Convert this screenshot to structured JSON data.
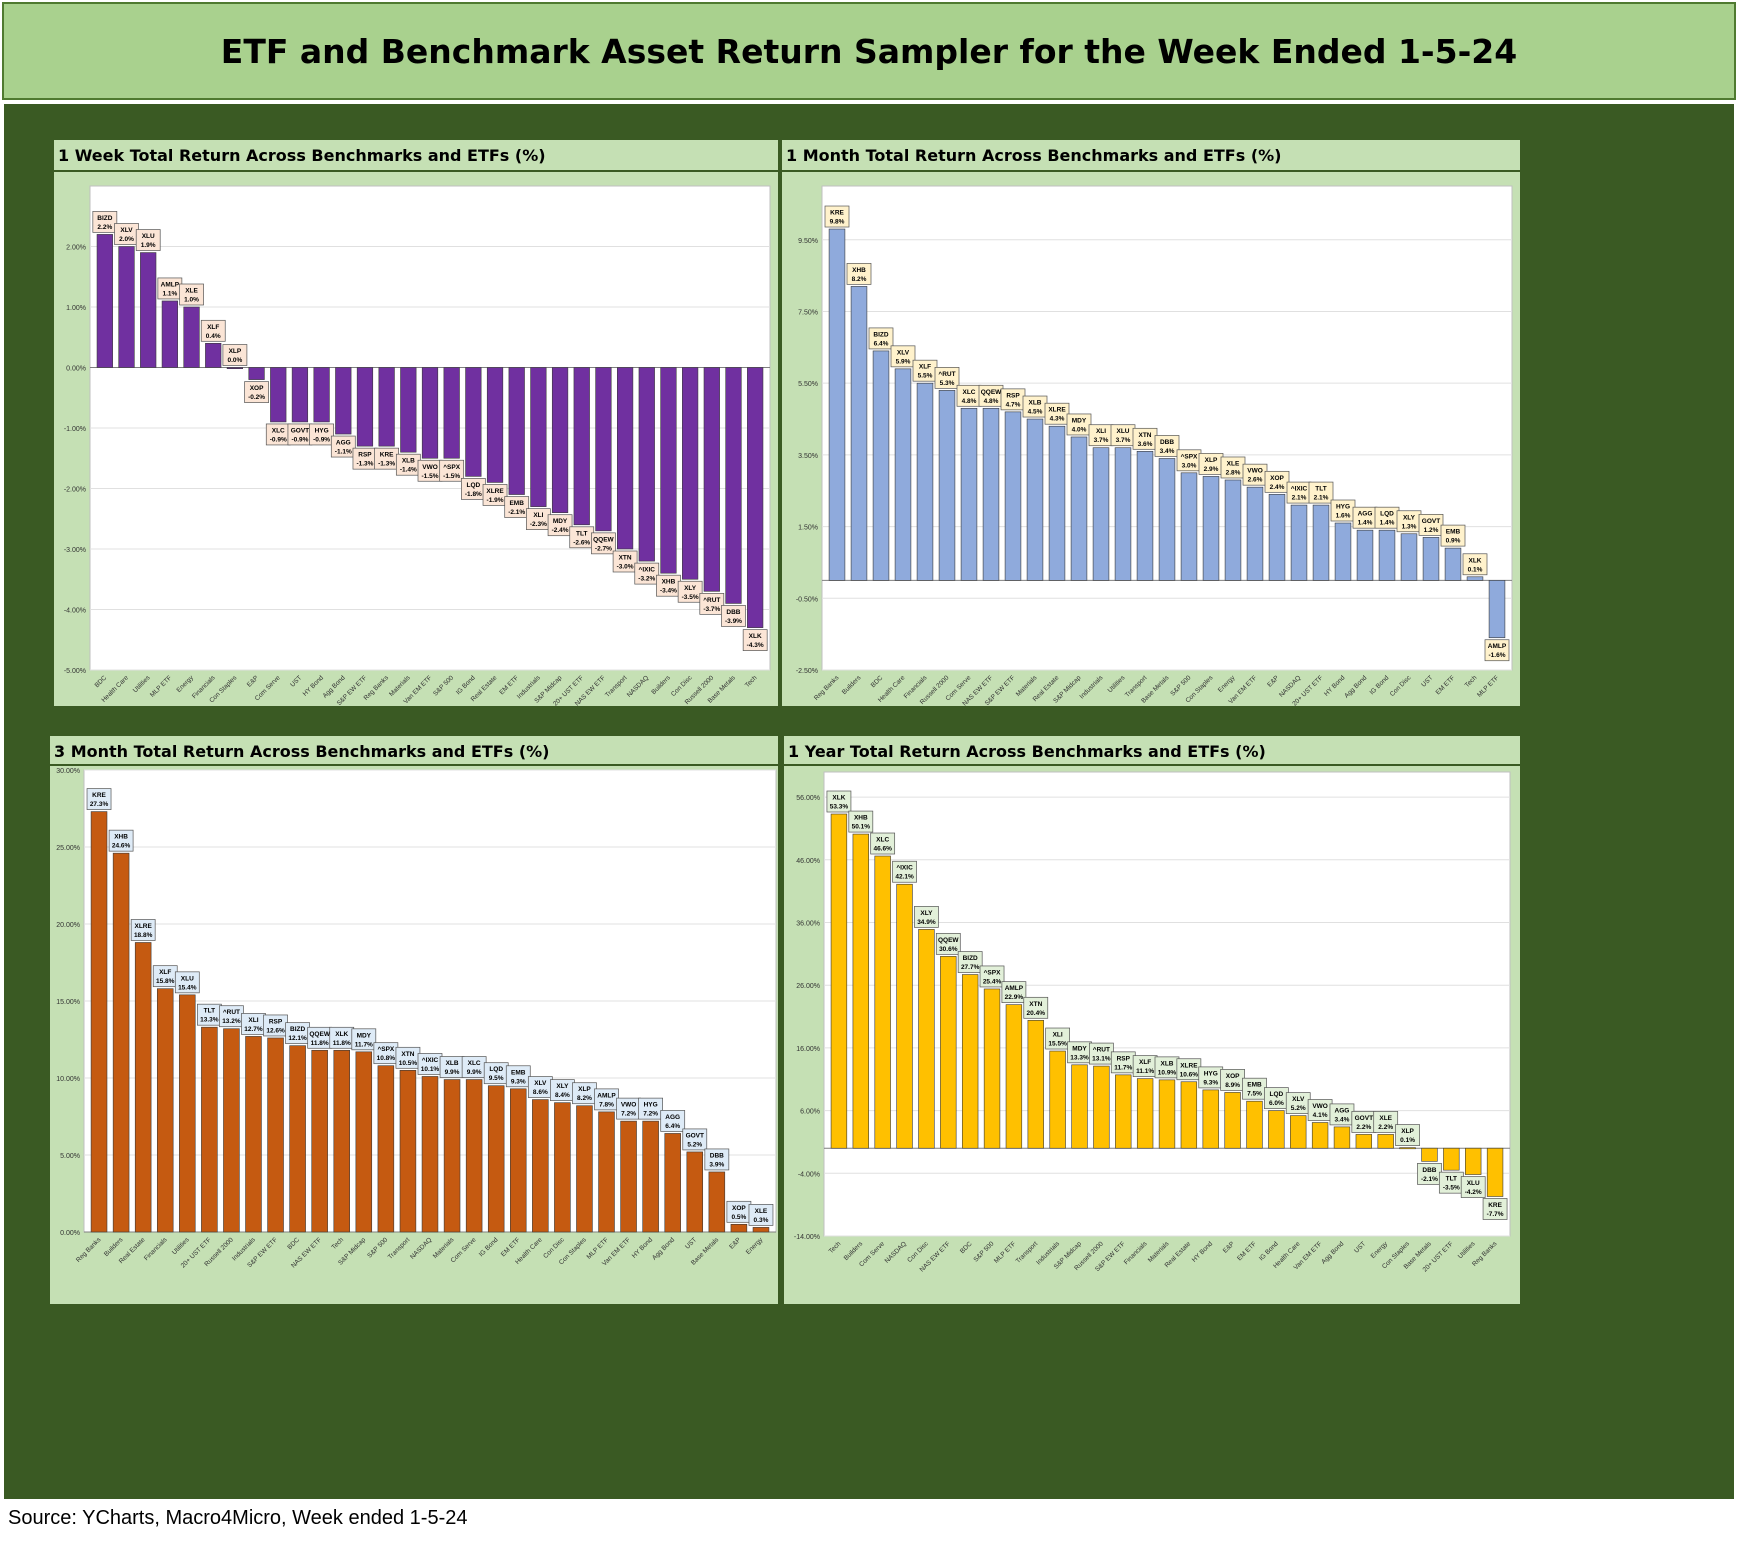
{
  "title": "ETF and Benchmark Asset Return Sampler for the Week Ended 1-5-24",
  "source": "Source: YCharts, Macro4Micro, Week ended 1-5-24",
  "colors": {
    "header_bg": "#a9d18e",
    "frame_bg": "#3a5a23",
    "panel_bg": "#c5e0b4",
    "label_box": "#fbe5d6"
  },
  "chart_data": [
    {
      "type": "bar",
      "title": "1 Week Total Return Across Benchmarks and ETFs (%)",
      "color": "#7030a0",
      "ylim": [
        -5,
        3
      ],
      "yticks": [
        2,
        1,
        0,
        -1,
        -2,
        -3,
        -4,
        -5
      ],
      "categories": [
        "BDC",
        "Health Care",
        "Utilities",
        "MLP ETF",
        "Energy",
        "Financials",
        "Con Staples",
        "E&P",
        "Com Serve",
        "UST",
        "HY Bond",
        "Agg Bond",
        "S&P EW ETF",
        "Reg Banks",
        "Materials",
        "Van EM ETF",
        "S&P 500",
        "IG Bond",
        "Real Estate",
        "EM ETF",
        "Industrials",
        "S&P Midcap",
        "20+ UST ETF",
        "NAS EW ETF",
        "Transport",
        "NASDAQ",
        "Builders",
        "Con Disc",
        "Russell 2000",
        "Base Metals",
        "Tech"
      ],
      "tickers": [
        "BIZD",
        "XLV",
        "XLU",
        "AMLP",
        "XLE",
        "XLF",
        "XLP",
        "XOP",
        "XLC",
        "GOVT",
        "HYG",
        "AGG",
        "RSP",
        "KRE",
        "XLB",
        "VWO",
        "^SPX",
        "LQD",
        "XLRE",
        "EMB",
        "XLI",
        "MDY",
        "TLT",
        "QQEW",
        "XTN",
        "^IXIC",
        "XHB",
        "XLY",
        "^RUT",
        "DBB",
        "XLK"
      ],
      "values": [
        2.2,
        2.0,
        1.9,
        1.1,
        1.0,
        0.4,
        0.0,
        -0.2,
        -0.9,
        -0.9,
        -0.9,
        -1.1,
        -1.3,
        -1.3,
        -1.4,
        -1.5,
        -1.5,
        -1.8,
        -1.9,
        -2.1,
        -2.3,
        -2.4,
        -2.6,
        -2.7,
        -3.0,
        -3.2,
        -3.4,
        -3.5,
        -3.7,
        -3.9,
        -4.3
      ]
    },
    {
      "type": "bar",
      "title": "1 Month Total Return Across Benchmarks and ETFs (%)",
      "color": "#8faadc",
      "ylim": [
        -2.5,
        11
      ],
      "yticks": [
        9.5,
        7.5,
        5.5,
        3.5,
        1.5,
        -0.5,
        -2.5
      ],
      "categories": [
        "Reg Banks",
        "Builders",
        "BDC",
        "Health Care",
        "Financials",
        "Russell 2000",
        "Com Serve",
        "NAS EW ETF",
        "S&P EW ETF",
        "Materials",
        "Real Estate",
        "S&P Midcap",
        "Industrials",
        "Utilities",
        "Transport",
        "Base Metals",
        "S&P 500",
        "Con Staples",
        "Energy",
        "Van EM ETF",
        "E&P",
        "NASDAQ",
        "20+ UST ETF",
        "HY Bond",
        "Agg Bond",
        "IG Bond",
        "Con Disc",
        "UST",
        "EM ETF",
        "Tech",
        "MLP ETF"
      ],
      "tickers": [
        "KRE",
        "XHB",
        "BIZD",
        "XLV",
        "XLF",
        "^RUT",
        "XLC",
        "QQEW",
        "RSP",
        "XLB",
        "XLRE",
        "MDY",
        "XLI",
        "XLU",
        "XTN",
        "DBB",
        "^SPX",
        "XLP",
        "XLE",
        "VWO",
        "XOP",
        "^IXIC",
        "TLT",
        "HYG",
        "AGG",
        "LQD",
        "XLY",
        "GOVT",
        "EMB",
        "XLK",
        "AMLP"
      ],
      "values": [
        9.8,
        8.2,
        6.4,
        5.9,
        5.5,
        5.3,
        4.8,
        4.8,
        4.7,
        4.5,
        4.3,
        4.0,
        3.7,
        3.7,
        3.6,
        3.4,
        3.0,
        2.9,
        2.8,
        2.6,
        2.4,
        2.1,
        2.1,
        1.6,
        1.4,
        1.4,
        1.3,
        1.2,
        0.9,
        0.1,
        -1.6
      ]
    },
    {
      "type": "bar",
      "title": "3 Month Total Return Across Benchmarks and ETFs (%)",
      "color": "#c55a11",
      "ylim": [
        0,
        30
      ],
      "yticks": [
        30,
        25,
        20,
        15,
        10,
        5,
        0
      ],
      "categories": [
        "Reg Banks",
        "Builders",
        "Real Estate",
        "Financials",
        "Utilities",
        "20+ UST ETF",
        "Russell 2000",
        "Industrials",
        "S&P EW ETF",
        "BDC",
        "NAS EW ETF",
        "Tech",
        "S&P Midcap",
        "S&P 500",
        "Transport",
        "NASDAQ",
        "Materials",
        "Com Serve",
        "IG Bond",
        "EM ETF",
        "Health Care",
        "Con Disc",
        "Con Staples",
        "MLP ETF",
        "Van EM ETF",
        "HY Bond",
        "Agg Bond",
        "UST",
        "Base Metals",
        "E&P",
        "Energy"
      ],
      "tickers": [
        "KRE",
        "XHB",
        "XLRE",
        "XLF",
        "XLU",
        "TLT",
        "^RUT",
        "XLI",
        "RSP",
        "BIZD",
        "QQEW",
        "XLK",
        "MDY",
        "^SPX",
        "XTN",
        "^IXIC",
        "XLB",
        "XLC",
        "LQD",
        "EMB",
        "XLV",
        "XLY",
        "XLP",
        "AMLP",
        "VWO",
        "HYG",
        "AGG",
        "GOVT",
        "DBB",
        "XOP",
        "XLE"
      ],
      "values": [
        27.3,
        24.6,
        18.8,
        15.8,
        15.4,
        13.3,
        13.2,
        12.7,
        12.6,
        12.1,
        11.8,
        11.8,
        11.7,
        10.8,
        10.5,
        10.1,
        9.9,
        9.9,
        9.5,
        9.3,
        8.6,
        8.4,
        8.2,
        7.8,
        7.2,
        7.2,
        6.4,
        5.2,
        3.9,
        0.5,
        0.3
      ]
    },
    {
      "type": "bar",
      "title": "1 Year Total Return Across Benchmarks and ETFs (%)",
      "color": "#ffc000",
      "ylim": [
        -14,
        60
      ],
      "yticks": [
        56,
        46,
        36,
        26,
        16,
        6,
        -4,
        -14
      ],
      "categories": [
        "Tech",
        "Builders",
        "Com Serve",
        "NASDAQ",
        "Con Disc",
        "NAS EW ETF",
        "BDC",
        "S&P 500",
        "MLP ETF",
        "Transport",
        "Industrials",
        "S&P Midcap",
        "Russell 2000",
        "S&P EW ETF",
        "Financials",
        "Materials",
        "Real Estate",
        "HY Bond",
        "E&P",
        "EM ETF",
        "IG Bond",
        "Health Care",
        "Van EM ETF",
        "Agg Bond",
        "UST",
        "Energy",
        "Con Staples",
        "Base Metals",
        "20+ UST ETF",
        "Utilities",
        "Reg Banks"
      ],
      "tickers": [
        "XLK",
        "XHB",
        "XLC",
        "^IXIC",
        "XLY",
        "QQEW",
        "BIZD",
        "^SPX",
        "AMLP",
        "XTN",
        "XLI",
        "MDY",
        "^RUT",
        "RSP",
        "XLF",
        "XLB",
        "XLRE",
        "HYG",
        "XOP",
        "EMB",
        "LQD",
        "XLV",
        "VWO",
        "AGG",
        "GOVT",
        "XLE",
        "XLP",
        "DBB",
        "TLT",
        "XLU",
        "KRE"
      ],
      "values": [
        53.3,
        50.1,
        46.6,
        42.1,
        34.9,
        30.6,
        27.7,
        25.4,
        22.9,
        20.4,
        15.5,
        13.3,
        13.1,
        11.7,
        11.1,
        10.9,
        10.6,
        9.3,
        8.9,
        7.5,
        6.0,
        5.2,
        4.1,
        3.4,
        2.2,
        2.2,
        0.1,
        -2.1,
        -3.5,
        -4.2,
        -7.7
      ]
    }
  ]
}
